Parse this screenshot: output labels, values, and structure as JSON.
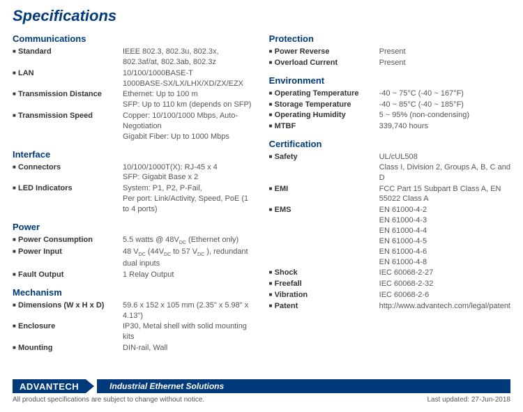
{
  "title": "Specifications",
  "left_sections": [
    {
      "heading": "Communications",
      "rows": [
        {
          "label": "Standard",
          "value": "IEEE 802.3, 802.3u, 802.3x, 802.3af/at, 802.3ab, 802.3z"
        },
        {
          "label": "LAN",
          "value": "10/100/1000BASE-T\n1000BASE-SX/LX/LHX/XD/ZX/EZX"
        },
        {
          "label": "Transmission Distance",
          "value": "Ethernet: Up to 100 m\nSFP: Up to 110 km (depends on SFP)"
        },
        {
          "label": "Transmission Speed",
          "value": "Copper: 10/100/1000 Mbps, Auto-Negotiation\nGigabit Fiber: Up to 1000 Mbps"
        }
      ]
    },
    {
      "heading": "Interface",
      "rows": [
        {
          "label": "Connectors",
          "value": "10/100/1000T(X): RJ-45 x 4\nSFP: Gigabit Base x 2"
        },
        {
          "label": "LED Indicators",
          "value": "System: P1, P2, P-Fail,\nPer port: Link/Activity, Speed, PoE (1 to 4 ports)"
        }
      ]
    },
    {
      "heading": "Power",
      "rows": [
        {
          "label": "Power Consumption",
          "value": "5.5 watts @ 48V_DC  (Ethernet only)"
        },
        {
          "label": "Power Input",
          "value": "48 V_DC (44V_DC to 57 V_DC ), redundant dual inputs"
        },
        {
          "label": "Fault Output",
          "value": "1 Relay Output"
        }
      ]
    },
    {
      "heading": "Mechanism",
      "rows": [
        {
          "label": "Dimensions (W x H x D)",
          "value": "59.6 x 152 x 105 mm (2.35\" x 5.98\" x 4.13\")"
        },
        {
          "label": "Enclosure",
          "value": "IP30, Metal shell with solid mounting kits"
        },
        {
          "label": "Mounting",
          "value": "DIN-rail, Wall"
        }
      ]
    }
  ],
  "right_sections": [
    {
      "heading": "Protection",
      "rows": [
        {
          "label": "Power Reverse",
          "value": "Present"
        },
        {
          "label": "Overload Current",
          "value": "Present"
        }
      ]
    },
    {
      "heading": "Environment",
      "rows": [
        {
          "label": "Operating Temperature",
          "value": "-40 ~ 75°C  (-40 ~ 167°F)"
        },
        {
          "label": "Storage Temperature",
          "value": "-40 ~ 85°C  (-40 ~ 185°F)"
        },
        {
          "label": "Operating Humidity",
          "value": "5 ~ 95% (non-condensing)"
        },
        {
          "label": "MTBF",
          "value": "339,740 hours"
        }
      ]
    },
    {
      "heading": "Certification",
      "rows": [
        {
          "label": "Safety",
          "value": "UL/cUL508\nClass I, Division 2, Groups A, B, C and D"
        },
        {
          "label": "EMI",
          "value": "FCC Part 15 Subpart B Class A,  EN 55022 Class A"
        },
        {
          "label": "EMS",
          "value": "EN 61000-4-2\nEN 61000-4-3\nEN 61000-4-4\nEN 61000-4-5\nEN 61000-4-6\nEN 61000-4-8"
        },
        {
          "label": "Shock",
          "value": "IEC 60068-2-27"
        },
        {
          "label": "Freefall",
          "value": "IEC 60068-2-32"
        },
        {
          "label": "Vibration",
          "value": "IEC 60068-2-6"
        },
        {
          "label": "Patent",
          "value": "http://www.advantech.com/legal/patent"
        }
      ]
    }
  ],
  "logo": "ADVANTECH",
  "tagline": "Industrial Ethernet Solutions",
  "disclaimer": "All product specifications are subject to change without notice.",
  "updated": "Last updated: 27-Jun-2018"
}
